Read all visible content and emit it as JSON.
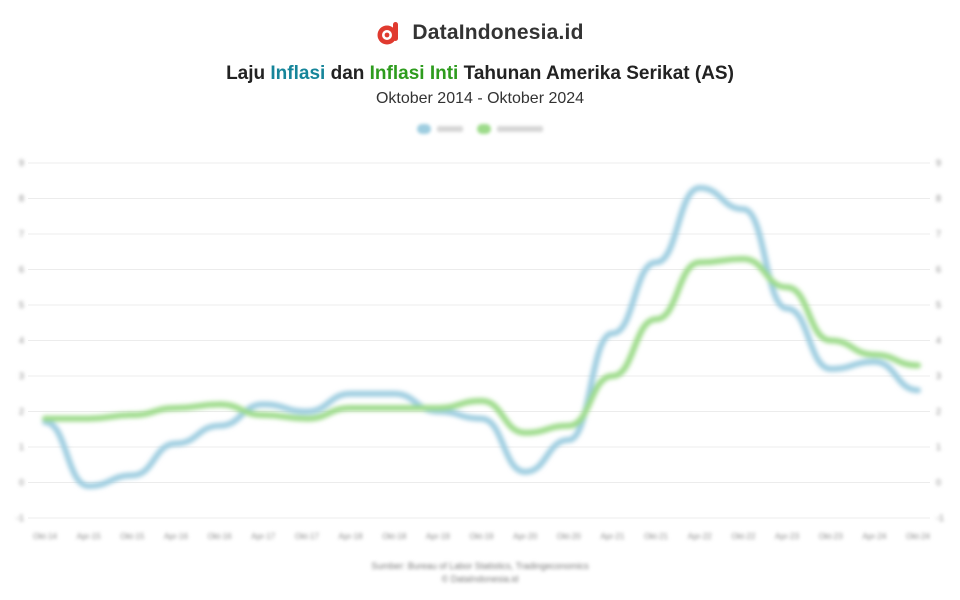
{
  "brand": {
    "name": "DataIndonesia.id",
    "logo_icon": "dataindonesia-logo-icon",
    "accent": "#e03a2f"
  },
  "title_parts": {
    "p1": "Laju ",
    "p2": "Inflasi",
    "p3": " dan ",
    "p4": "Inflasi Inti",
    "p5": " Tahunan Amerika Serikat (AS)"
  },
  "subtitle": "Oktober 2014 - Oktober 2024",
  "colors": {
    "inflasi": "#9ecde0",
    "inflasi_inti": "#9ddb8a",
    "title_blue": "#16859a",
    "title_green": "#2e9c1e"
  },
  "chart_data": {
    "type": "line",
    "title": "Laju Inflasi dan Inflasi Inti Tahunan Amerika Serikat (AS)",
    "subtitle": "Oktober 2014 - Oktober 2024",
    "x": [
      "Okt-14",
      "Apr-15",
      "Okt-15",
      "Apr-16",
      "Okt-16",
      "Apr-17",
      "Okt-17",
      "Apr-18",
      "Okt-18",
      "Apr-19",
      "Okt-19",
      "Apr-20",
      "Okt-20",
      "Apr-21",
      "Okt-21",
      "Apr-22",
      "Okt-22",
      "Apr-23",
      "Okt-23",
      "Apr-24",
      "Okt-24"
    ],
    "ylim": [
      -1,
      9
    ],
    "yticks": [
      -1,
      0,
      1,
      2,
      3,
      4,
      5,
      6,
      7,
      8,
      9
    ],
    "legend_position": "top-center",
    "grid": true,
    "series": [
      {
        "key": "inflasi",
        "values": [
          1.7,
          -0.1,
          0.2,
          1.1,
          1.6,
          2.2,
          2.0,
          2.5,
          2.5,
          2.0,
          1.8,
          0.3,
          1.2,
          4.2,
          6.2,
          8.3,
          7.7,
          4.9,
          3.2,
          3.4,
          2.6
        ]
      },
      {
        "key": "inflasi_inti",
        "values": [
          1.8,
          1.8,
          1.9,
          2.1,
          2.2,
          1.9,
          1.8,
          2.1,
          2.1,
          2.1,
          2.3,
          1.4,
          1.6,
          3.0,
          4.6,
          6.2,
          6.3,
          5.5,
          4.0,
          3.6,
          3.3
        ]
      }
    ]
  },
  "source_lines": [
    "Sumber: Bureau of Labor Statistics, Tradingeconomics",
    "© DataIndonesia.id"
  ]
}
